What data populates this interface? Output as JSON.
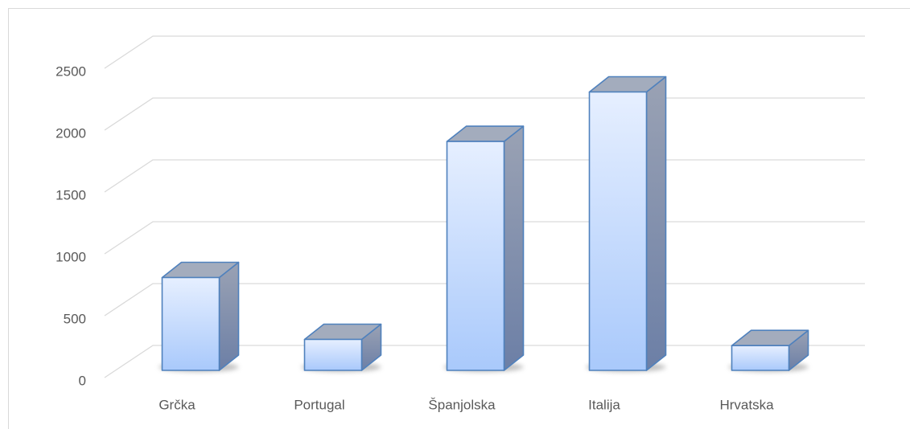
{
  "chart_data": {
    "type": "bar3d",
    "categories": [
      "Grčka",
      "Portugal",
      "Španjolska",
      "Italija",
      "Hrvatska"
    ],
    "values": [
      750,
      250,
      1850,
      2250,
      200
    ],
    "color": "#4f81bd",
    "ylim": [
      0,
      2500
    ],
    "yticks": [
      0,
      500,
      1000,
      1500,
      2000,
      2500
    ],
    "grid": true
  }
}
